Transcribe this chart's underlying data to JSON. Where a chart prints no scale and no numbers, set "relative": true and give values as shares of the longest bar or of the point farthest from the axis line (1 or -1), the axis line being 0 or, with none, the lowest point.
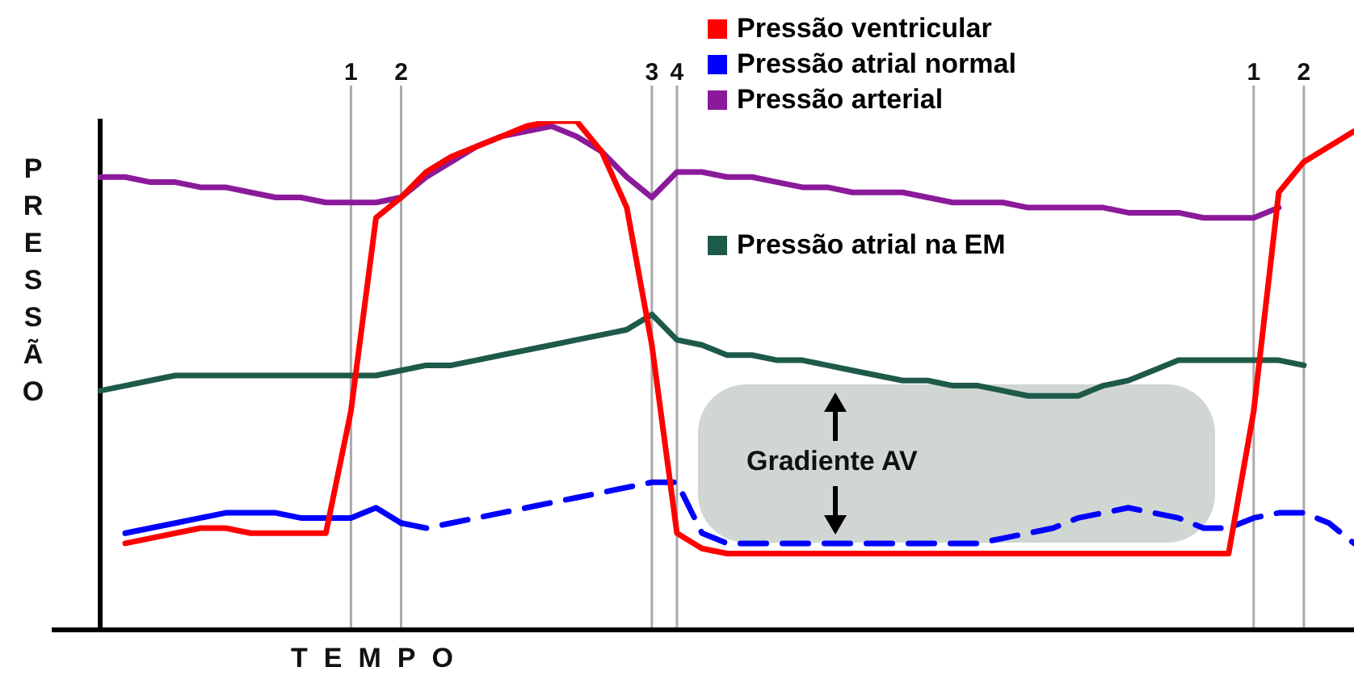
{
  "chart_data": {
    "type": "line",
    "relative": true,
    "xlabel": "TEMPO",
    "ylabel": "PRESSÃO",
    "categories": [
      null,
      null,
      null,
      null,
      null,
      null,
      null,
      null,
      null,
      null,
      "1",
      null,
      "2",
      null,
      null,
      null,
      null,
      null,
      null,
      null,
      null,
      null,
      "3",
      "4",
      null,
      null,
      null,
      null,
      null,
      null,
      null,
      null,
      null,
      null,
      null,
      null,
      null,
      null,
      null,
      null,
      null,
      null,
      null,
      null,
      null,
      null,
      "1",
      null,
      "2",
      null,
      null
    ],
    "tick_labels": "x",
    "legend": "top right",
    "grid": "x",
    "marker": "none",
    "line_style": "solid",
    "series": [
      {
        "name": "Pressão ventricular",
        "color": "#ff0000",
        "values": [
          null,
          0.17,
          0.18,
          0.19,
          0.2,
          0.2,
          0.19,
          0.19,
          0.19,
          0.19,
          0.43,
          0.81,
          0.85,
          0.9,
          0.93,
          0.95,
          0.97,
          0.99,
          1,
          1,
          0.94,
          0.83,
          0.56,
          0.19,
          0.16,
          0.15,
          0.15,
          0.15,
          0.15,
          0.15,
          0.15,
          0.15,
          0.15,
          0.15,
          0.15,
          0.15,
          0.15,
          0.15,
          0.15,
          0.15,
          0.15,
          0.15,
          0.15,
          0.15,
          0.15,
          0.15,
          0.43,
          0.86,
          0.92,
          0.95,
          0.98
        ]
      },
      {
        "name": "Pressão atrial normal",
        "color": "#0000ff",
        "values": [
          null,
          0.19,
          0.2,
          0.21,
          0.22,
          0.23,
          0.23,
          0.23,
          0.22,
          0.22,
          0.22,
          0.24,
          0.21,
          null,
          null,
          null,
          null,
          null,
          null,
          null,
          null,
          null,
          null,
          null,
          null,
          null,
          null,
          null,
          null,
          null,
          null,
          null,
          null,
          null,
          null,
          null,
          null,
          null,
          null,
          null,
          null,
          null,
          null,
          null,
          null,
          null,
          null,
          null,
          null,
          null,
          null
        ]
      },
      {
        "color": "#0000ff",
        "line_style": "dashed",
        "values": [
          null,
          null,
          null,
          null,
          null,
          null,
          null,
          null,
          null,
          null,
          null,
          null,
          0.21,
          0.2,
          0.21,
          0.22,
          0.23,
          0.24,
          0.25,
          0.26,
          0.27,
          0.28,
          0.29,
          0.29,
          0.19,
          0.17,
          0.17,
          0.17,
          0.17,
          0.17,
          0.17,
          0.17,
          0.17,
          0.17,
          0.17,
          0.17,
          0.18,
          0.19,
          0.2,
          0.22,
          0.23,
          0.24,
          0.23,
          0.22,
          0.2,
          0.2,
          0.22,
          0.23,
          0.23,
          0.21,
          0.17
        ]
      },
      {
        "name": "Pressão arterial",
        "color": "#8b1a9b",
        "values": [
          0.89,
          0.89,
          0.88,
          0.88,
          0.87,
          0.87,
          0.86,
          0.85,
          0.85,
          0.84,
          0.84,
          0.84,
          0.85,
          0.89,
          0.92,
          0.95,
          0.97,
          0.98,
          0.99,
          0.97,
          0.94,
          0.89,
          0.85,
          0.9,
          0.9,
          0.89,
          0.89,
          0.88,
          0.87,
          0.87,
          0.86,
          0.86,
          0.86,
          0.85,
          0.84,
          0.84,
          0.84,
          0.83,
          0.83,
          0.83,
          0.83,
          0.82,
          0.82,
          0.82,
          0.81,
          0.81,
          0.81,
          0.83,
          null,
          null,
          null
        ]
      },
      {
        "name": "Pressão atrial na EM",
        "color": "#1e5a4a",
        "values": [
          0.47,
          0.48,
          0.49,
          0.5,
          0.5,
          0.5,
          0.5,
          0.5,
          0.5,
          0.5,
          0.5,
          0.5,
          0.51,
          0.52,
          0.52,
          0.53,
          0.54,
          0.55,
          0.56,
          0.57,
          0.58,
          0.59,
          0.62,
          0.57,
          0.56,
          0.54,
          0.54,
          0.53,
          0.53,
          0.52,
          0.51,
          0.5,
          0.49,
          0.49,
          0.48,
          0.48,
          0.47,
          0.46,
          0.46,
          0.46,
          0.48,
          0.49,
          0.51,
          0.53,
          0.53,
          0.53,
          0.53,
          0.53,
          0.52,
          null,
          null
        ]
      }
    ],
    "annotations": [
      "Gradiente AV"
    ]
  }
}
